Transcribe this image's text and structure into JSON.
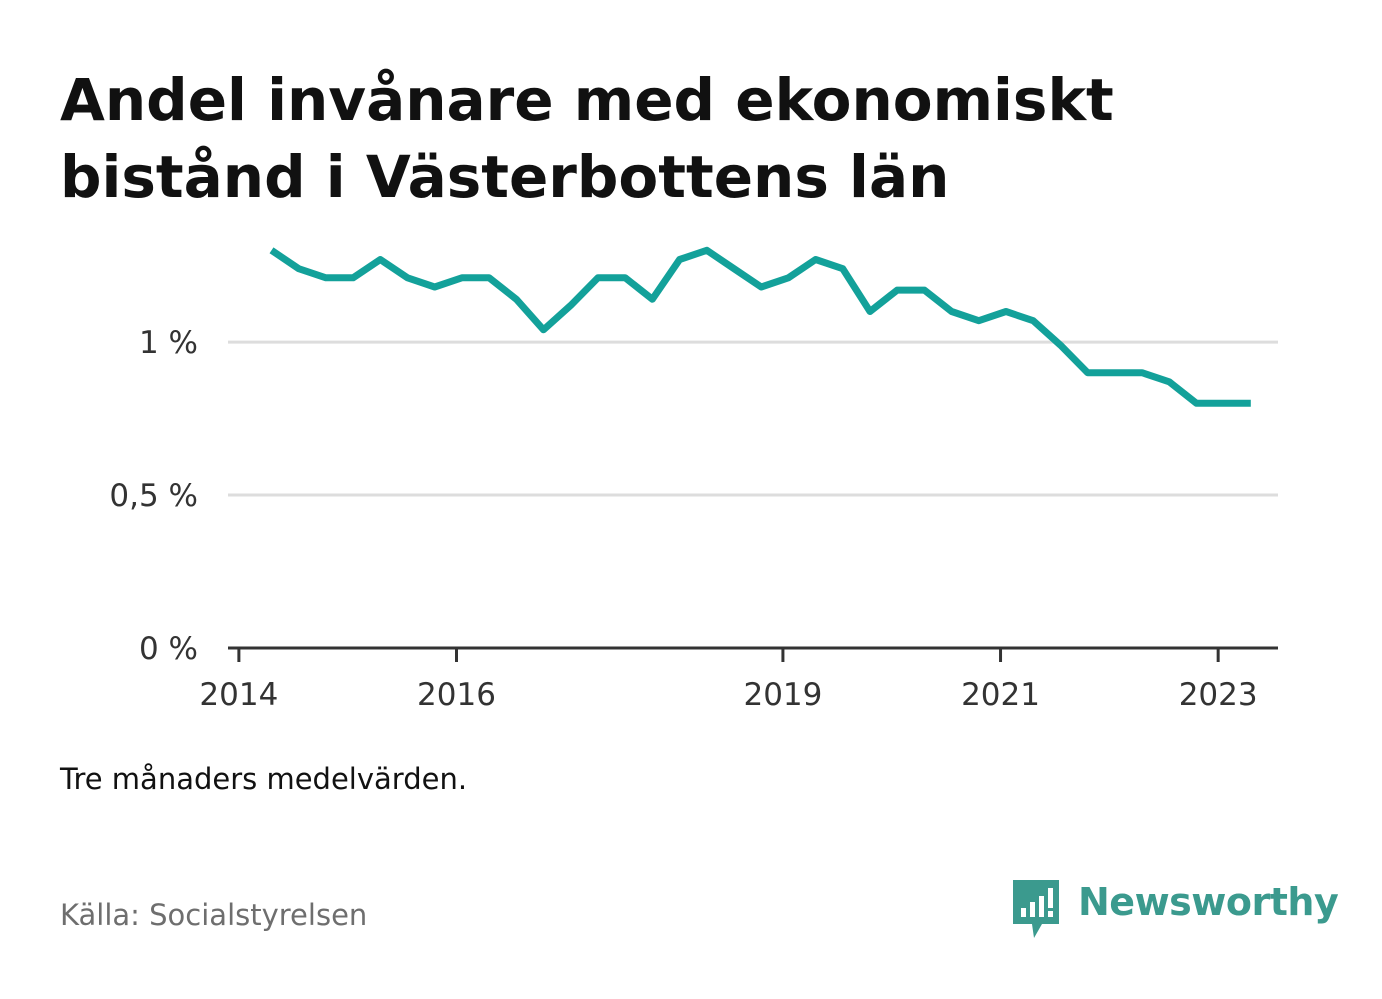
{
  "title": "Andel invånare med ekonomiskt bistånd i Västerbottens län",
  "note": "Tre månaders medelvärden.",
  "source": "Källa: Socialstyrelsen",
  "brand": {
    "name": "Newsworthy",
    "icon": "newsworthy-logo-icon",
    "color": "#3b9a8e"
  },
  "colors": {
    "line": "#13a19a",
    "grid": "#dddddd",
    "axis": "#333333"
  },
  "chart_data": {
    "type": "line",
    "title": "Andel invånare med ekonomiskt bistånd i Västerbottens län",
    "xlabel": "",
    "ylabel": "",
    "ylim": [
      0,
      1.35
    ],
    "yticks": [
      {
        "value": 0,
        "label": "0 %"
      },
      {
        "value": 0.5,
        "label": "0,5 %"
      },
      {
        "value": 1,
        "label": "1 %"
      }
    ],
    "xticks": [
      {
        "value": 2014.0,
        "label": "2014"
      },
      {
        "value": 2016.0,
        "label": "2016"
      },
      {
        "value": 2019.0,
        "label": "2019"
      },
      {
        "value": 2021.0,
        "label": "2021"
      },
      {
        "value": 2023.0,
        "label": "2023"
      }
    ],
    "xlim": [
      2013.9,
      2023.55
    ],
    "grid": true,
    "legend": "none",
    "series": [
      {
        "x": [
          2014.3,
          2014.55,
          2014.8,
          2015.05,
          2015.3,
          2015.55,
          2015.8,
          2016.05,
          2016.3,
          2016.55,
          2016.8,
          2017.05,
          2017.3,
          2017.55,
          2017.8,
          2018.05,
          2018.3,
          2018.55,
          2018.8,
          2019.05,
          2019.3,
          2019.55,
          2019.8,
          2020.05,
          2020.3,
          2020.55,
          2020.8,
          2021.05,
          2021.3,
          2021.55,
          2021.8,
          2022.05,
          2022.3,
          2022.55,
          2022.8,
          2023.05,
          2023.3
        ],
        "values": [
          1.3,
          1.24,
          1.21,
          1.21,
          1.27,
          1.21,
          1.18,
          1.21,
          1.21,
          1.14,
          1.04,
          1.12,
          1.21,
          1.21,
          1.14,
          1.27,
          1.3,
          1.24,
          1.18,
          1.21,
          1.27,
          1.24,
          1.1,
          1.17,
          1.17,
          1.1,
          1.07,
          1.1,
          1.07,
          0.99,
          0.9,
          0.9,
          0.9,
          0.87,
          0.8,
          0.8,
          0.8
        ]
      }
    ]
  }
}
